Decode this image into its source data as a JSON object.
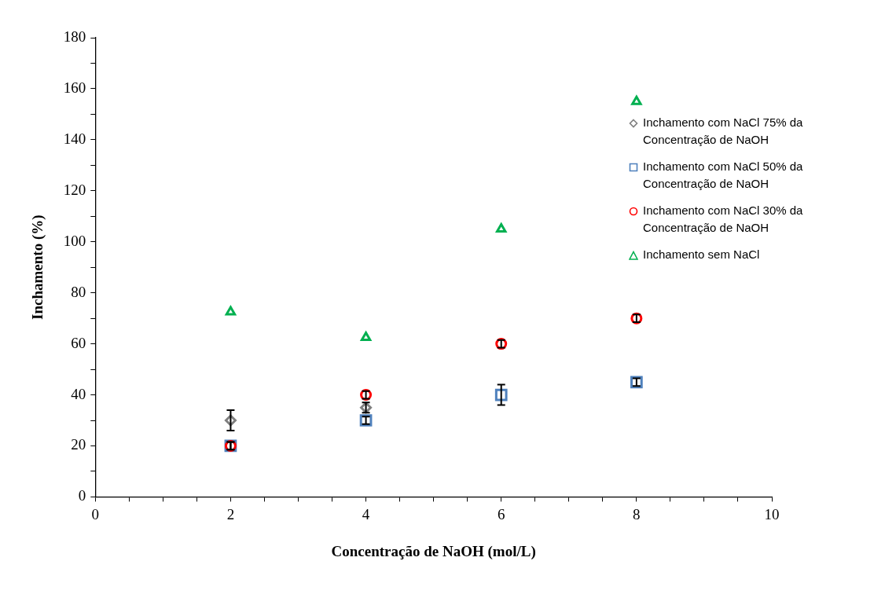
{
  "chart_data": {
    "type": "scatter",
    "xlabel": "Concentração de NaOH (mol/L)",
    "ylabel": "Inchamento (%)",
    "x": [
      2,
      4,
      6,
      8
    ],
    "series": [
      {
        "name": "Inchamento com NaCl 75% da Concentração de NaOH",
        "color": "#7f7f7f",
        "marker": "diamond",
        "values": [
          30,
          35,
          null,
          null
        ],
        "errors": [
          4,
          2,
          null,
          null
        ]
      },
      {
        "name": "Inchamento com NaCl 50% da Concentração de NaOH",
        "color": "#4f81bd",
        "marker": "square",
        "values": [
          20,
          30,
          40,
          45
        ],
        "errors": [
          1.5,
          1.5,
          4,
          1.5
        ]
      },
      {
        "name": "Inchamento com NaCl 30% da Concentração de NaOH",
        "color": "#ff0000",
        "marker": "circle",
        "values": [
          20,
          40,
          60,
          70
        ],
        "errors": [
          1.5,
          1.5,
          1.5,
          1.5
        ]
      },
      {
        "name": "Inchamento sem NaCl",
        "color": "#00b050",
        "marker": "triangle",
        "values": [
          72.5,
          62.5,
          105,
          155
        ]
      }
    ],
    "xlim": [
      0,
      10
    ],
    "xticks": [
      0,
      {
        "value": 0.5,
        "label": null
      },
      {
        "value": 1,
        "label": null
      },
      {
        "value": 1.5,
        "label": null
      },
      2,
      {
        "value": 2.5,
        "label": null
      },
      {
        "value": 3,
        "label": null
      },
      {
        "value": 3.5,
        "label": null
      },
      4,
      {
        "value": 4.5,
        "label": null
      },
      {
        "value": 5,
        "label": null
      },
      {
        "value": 5.5,
        "label": null
      },
      6,
      {
        "value": 6.5,
        "label": null
      },
      {
        "value": 7,
        "label": null
      },
      {
        "value": 7.5,
        "label": null
      },
      8,
      {
        "value": 8.5,
        "label": null
      },
      {
        "value": 9,
        "label": null
      },
      {
        "value": 9.5,
        "label": null
      },
      10
    ],
    "ylim": [
      0,
      180
    ],
    "yticks": [
      0,
      {
        "value": 10,
        "label": null
      },
      20,
      {
        "value": 30,
        "label": null
      },
      40,
      {
        "value": 50,
        "label": null
      },
      60,
      {
        "value": 70,
        "label": null
      },
      80,
      {
        "value": 90,
        "label": null
      },
      100,
      {
        "value": 110,
        "label": null
      },
      120,
      {
        "value": 130,
        "label": null
      },
      140,
      {
        "value": 150,
        "label": null
      },
      160,
      {
        "value": 170,
        "label": null
      },
      180
    ],
    "grid": false,
    "legend": "right"
  }
}
